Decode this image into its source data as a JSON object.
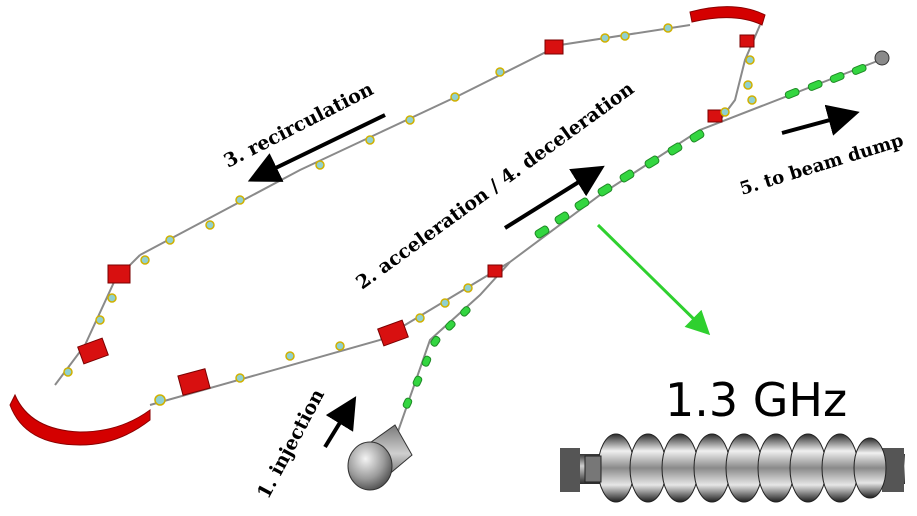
{
  "labels": {
    "injection": "1. injection",
    "acceleration": "2. acceleration / 4. deceleration",
    "recirculation": "3. recirculation",
    "dump": "5. to beam dump",
    "frequency": "1.3 GHz"
  },
  "colors": {
    "dipole": "#d40000",
    "quad": "#e02020",
    "cavity": "#33d640",
    "arrow": "#000000",
    "pointer": "#2fd02f",
    "beamline": "#808080",
    "gun": "#a0a0a0"
  },
  "icons": {
    "gun": "electron-gun-icon",
    "dump": "beam-dump-icon",
    "cavity": "superconducting-cavity-icon"
  }
}
